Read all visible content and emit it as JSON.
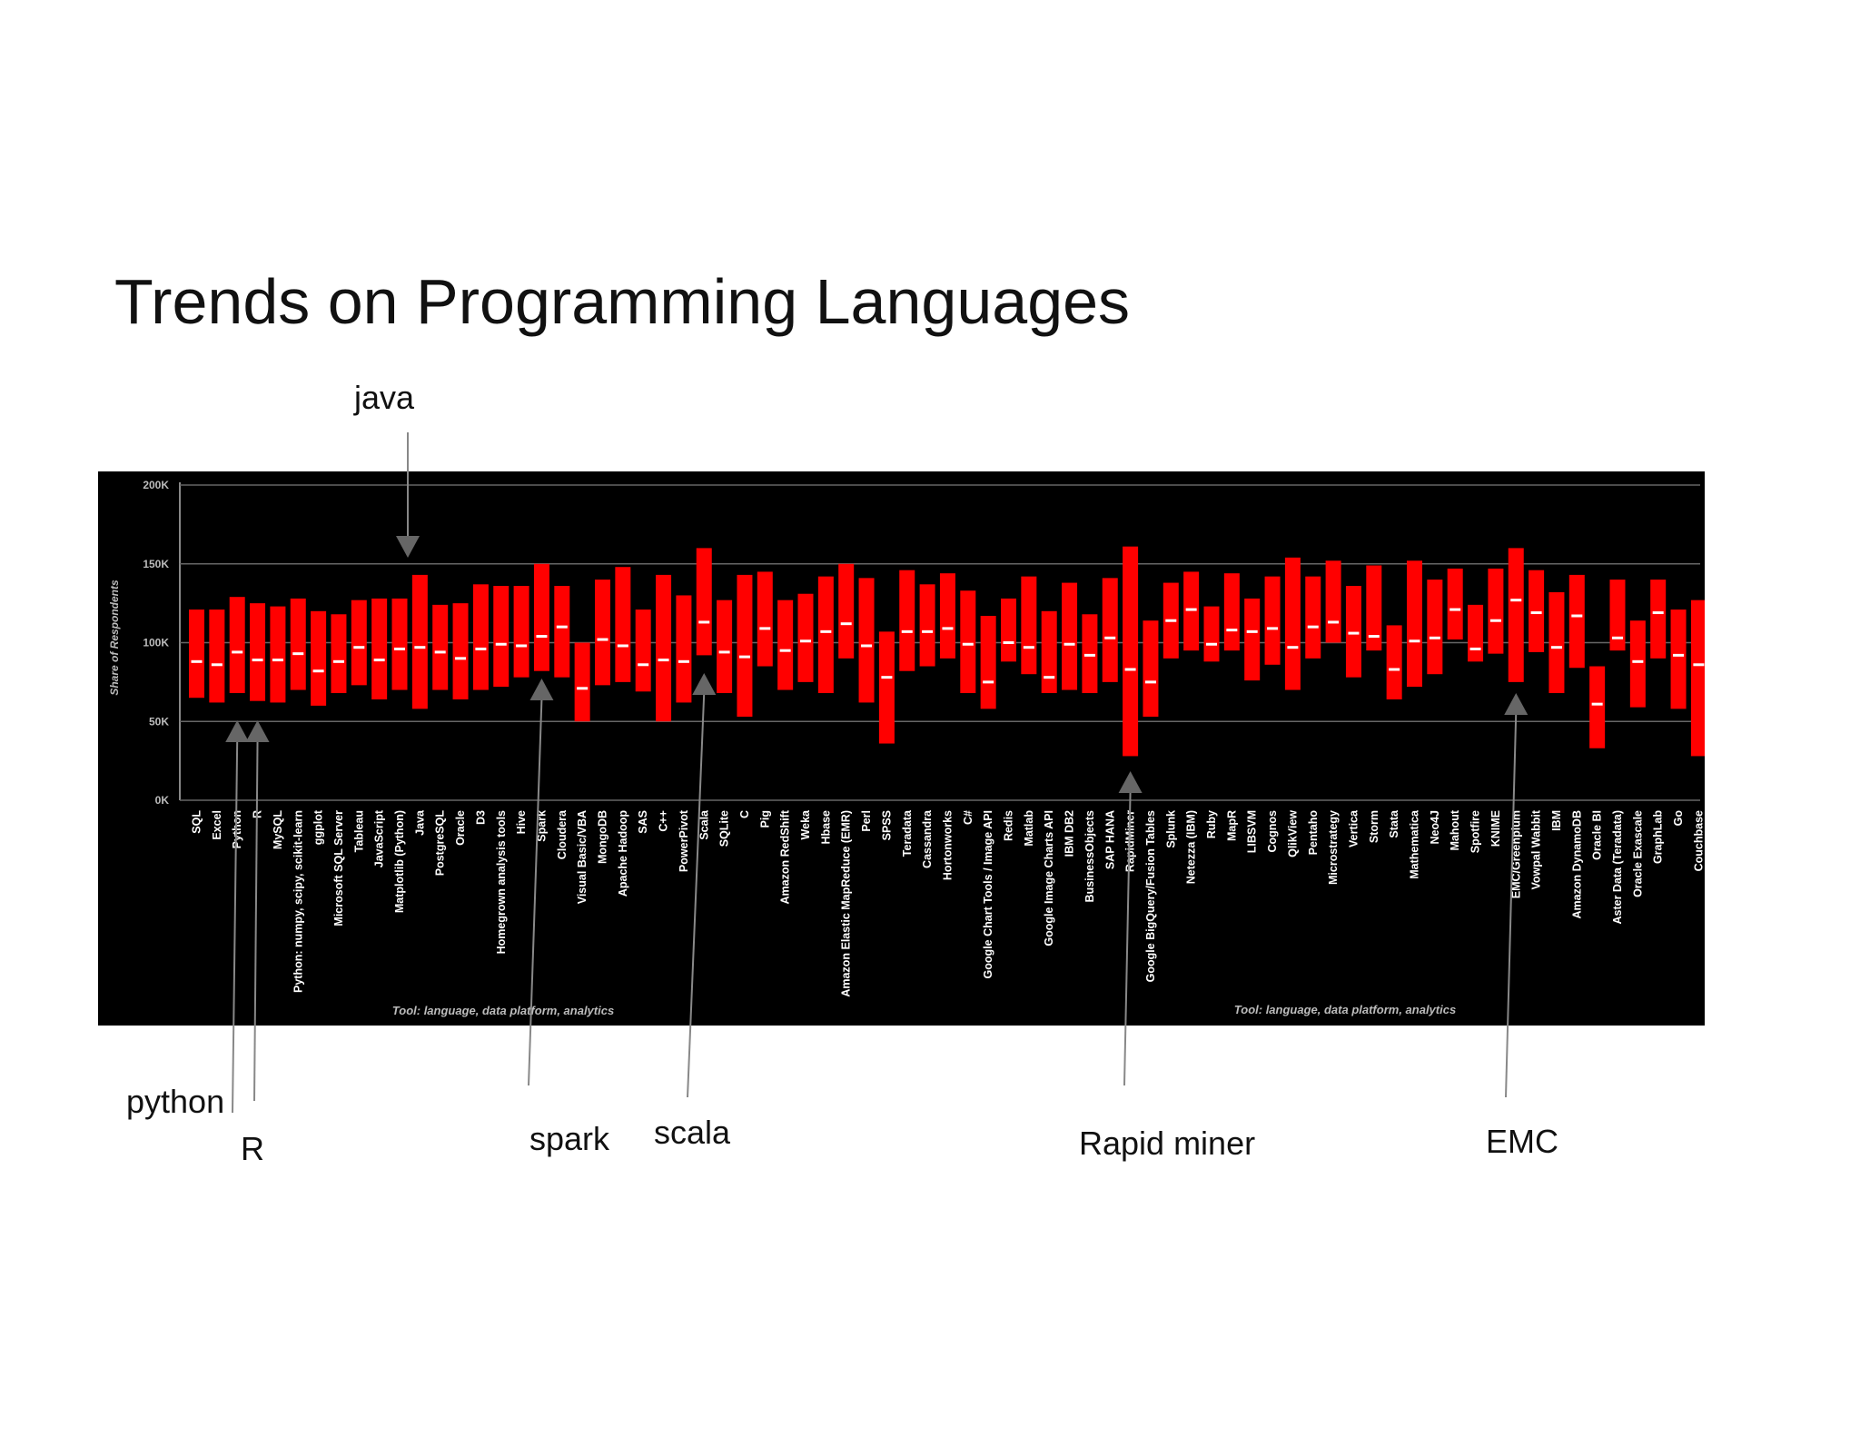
{
  "title": "Trends on Programming Languages",
  "colors": {
    "background": "#ffffff",
    "panel": "#000000",
    "bar": "#ff0000",
    "median": "#ffffff",
    "grid": "#666666",
    "tick_text": "#bbbbbb",
    "category_text": "#ffffff",
    "annotation": "#888888"
  },
  "annotations": [
    {
      "label": "java",
      "target": "Java"
    },
    {
      "label": "python",
      "target": "Python"
    },
    {
      "label": "R",
      "target": "R"
    },
    {
      "label": "spark",
      "target": "Spark"
    },
    {
      "label": "scala",
      "target": "Scala"
    },
    {
      "label": "Rapid miner",
      "target": "RapidMiner"
    },
    {
      "label": "EMC",
      "target": "EMC/Greenplum"
    }
  ],
  "chart_data": {
    "type": "bar",
    "subtype": "floating-range-with-median",
    "ylabel": "Share of Respondents",
    "xlabel_left": "Tool: language, data platform, analytics",
    "xlabel_right": "Tool: language, data platform, analytics",
    "ylim": [
      0,
      200000
    ],
    "yticks": [
      {
        "value": 0,
        "label": "0K"
      },
      {
        "value": 50000,
        "label": "50K"
      },
      {
        "value": 100000,
        "label": "100K"
      },
      {
        "value": 150000,
        "label": "150K"
      },
      {
        "value": 200000,
        "label": "200K"
      }
    ],
    "grid": true,
    "categories": [
      "SQL",
      "Excel",
      "Python",
      "R",
      "MySQL",
      "Python: numpy, scipy, scikit-learn",
      "ggplot",
      "Microsoft SQL Server",
      "Tableau",
      "JavaScript",
      "Matplotlib (Python)",
      "Java",
      "PostgreSQL",
      "Oracle",
      "D3",
      "Homegrown analysis tools",
      "Hive",
      "Spark",
      "Cloudera",
      "Visual Basic/VBA",
      "MongoDB",
      "Apache Hadoop",
      "SAS",
      "C++",
      "PowerPivot",
      "Scala",
      "SQLite",
      "C",
      "Pig",
      "Amazon RedShift",
      "Weka",
      "Hbase",
      "Amazon Elastic MapReduce (EMR)",
      "Perl",
      "SPSS",
      "Teradata",
      "Cassandra",
      "Hortonworks",
      "C#",
      "Google Chart Tools / Image API",
      "Redis",
      "Matlab",
      "Google Image Charts API",
      "IBM DB2",
      "BusinessObjects",
      "SAP HANA",
      "RapidMiner",
      "Google BigQuery/Fusion Tables",
      "Splunk",
      "Netezza (IBM)",
      "Ruby",
      "MapR",
      "LIBSVM",
      "Cognos",
      "QlikView",
      "Pentaho",
      "Microstrategy",
      "Vertica",
      "Storm",
      "Stata",
      "Mathematica",
      "Neo4J",
      "Mahout",
      "Spotfire",
      "KNIME",
      "EMC/Greenplum",
      "Vowpal Wabbit",
      "IBM",
      "Amazon DynamoDB",
      "Oracle BI",
      "Aster Data (Teradata)",
      "Oracle Exascale",
      "GraphLab",
      "Go",
      "Couchbase"
    ],
    "low": [
      65000,
      62000,
      68000,
      63000,
      62000,
      70000,
      60000,
      68000,
      73000,
      64000,
      70000,
      58000,
      70000,
      64000,
      70000,
      72000,
      78000,
      82000,
      78000,
      50000,
      73000,
      75000,
      69000,
      50000,
      62000,
      92000,
      68000,
      53000,
      85000,
      70000,
      75000,
      68000,
      90000,
      62000,
      36000,
      82000,
      85000,
      90000,
      68000,
      58000,
      88000,
      80000,
      68000,
      70000,
      68000,
      75000,
      28000,
      53000,
      90000,
      95000,
      88000,
      95000,
      76000,
      86000,
      70000,
      90000,
      100000,
      78000,
      95000,
      64000,
      72000,
      80000,
      102000,
      88000,
      93000,
      75000,
      94000,
      68000,
      84000,
      33000,
      95000,
      59000,
      90000,
      58000,
      28000
    ],
    "high": [
      121000,
      121000,
      129000,
      125000,
      123000,
      128000,
      120000,
      118000,
      127000,
      128000,
      128000,
      143000,
      124000,
      125000,
      137000,
      136000,
      136000,
      150000,
      136000,
      100000,
      140000,
      148000,
      121000,
      143000,
      130000,
      160000,
      127000,
      143000,
      145000,
      127000,
      131000,
      142000,
      150000,
      141000,
      107000,
      146000,
      137000,
      144000,
      133000,
      117000,
      128000,
      142000,
      120000,
      138000,
      118000,
      141000,
      161000,
      114000,
      138000,
      145000,
      123000,
      144000,
      128000,
      142000,
      154000,
      142000,
      152000,
      136000,
      149000,
      111000,
      152000,
      140000,
      147000,
      124000,
      147000,
      160000,
      146000,
      132000,
      143000,
      85000,
      140000,
      114000,
      140000,
      121000,
      127000
    ],
    "median": [
      88000,
      86000,
      94000,
      89000,
      89000,
      93000,
      82000,
      88000,
      97000,
      89000,
      96000,
      97000,
      94000,
      90000,
      96000,
      99000,
      98000,
      104000,
      110000,
      71000,
      102000,
      98000,
      86000,
      89000,
      88000,
      113000,
      94000,
      91000,
      109000,
      95000,
      101000,
      107000,
      112000,
      98000,
      78000,
      107000,
      107000,
      109000,
      99000,
      75000,
      100000,
      97000,
      78000,
      99000,
      92000,
      103000,
      83000,
      75000,
      114000,
      121000,
      99000,
      108000,
      107000,
      109000,
      97000,
      110000,
      113000,
      106000,
      104000,
      83000,
      101000,
      103000,
      121000,
      96000,
      114000,
      127000,
      119000,
      97000,
      117000,
      61000,
      103000,
      88000,
      119000,
      92000,
      86000
    ]
  }
}
